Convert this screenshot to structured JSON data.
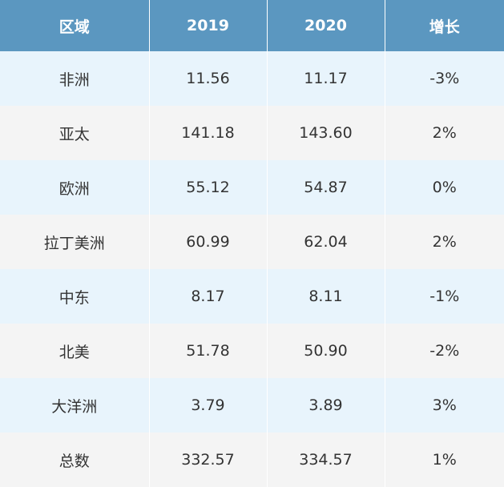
{
  "chart_data": {
    "type": "table",
    "columns": [
      "区域",
      "2019",
      "2020",
      "增长"
    ],
    "rows": [
      [
        "非洲",
        "11.56",
        "11.17",
        "-3%"
      ],
      [
        "亚太",
        "141.18",
        "143.60",
        "2%"
      ],
      [
        "欧洲",
        "55.12",
        "54.87",
        "0%"
      ],
      [
        "拉丁美洲",
        "60.99",
        "62.04",
        "2%"
      ],
      [
        "中东",
        "8.17",
        "8.11",
        "-1%"
      ],
      [
        "北美",
        "51.78",
        "50.90",
        "-2%"
      ],
      [
        "大洋洲",
        "3.79",
        "3.89",
        "3%"
      ],
      [
        "总数",
        "332.57",
        "334.57",
        "1%"
      ]
    ]
  },
  "colors": {
    "header_bg": "#5b97c0",
    "row_odd_bg": "#e8f4fc",
    "row_even_bg": "#f4f4f4"
  }
}
